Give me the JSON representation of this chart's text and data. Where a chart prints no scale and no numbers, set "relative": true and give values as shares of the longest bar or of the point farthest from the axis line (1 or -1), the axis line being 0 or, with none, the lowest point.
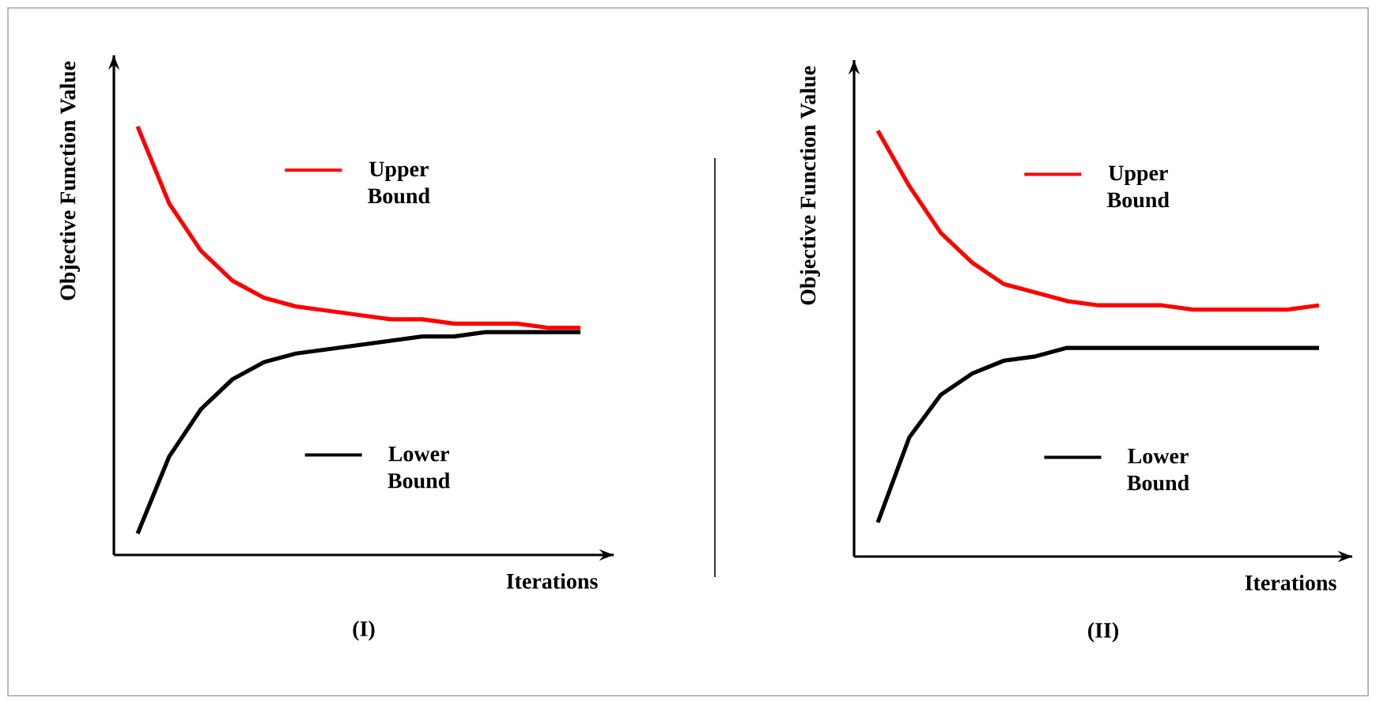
{
  "chart_data": [
    {
      "type": "line",
      "title": "(I)",
      "xlabel": "Iterations",
      "ylabel": "Objective Function Value",
      "relative": true,
      "legend": "top",
      "categories": [
        null,
        null,
        null,
        null,
        null,
        null,
        null,
        null,
        null,
        null,
        null,
        null,
        null,
        null,
        null
      ],
      "series": [
        {
          "name": "Upper Bound",
          "color": "#ff0000",
          "values": [
            1.0,
            0.82,
            0.71,
            0.64,
            0.6,
            0.58,
            0.57,
            0.56,
            0.55,
            0.55,
            0.54,
            0.54,
            0.54,
            0.53,
            0.53
          ]
        },
        {
          "name": "Lower Bound",
          "color": "#000000",
          "values": [
            0.05,
            0.23,
            0.34,
            0.41,
            0.45,
            0.47,
            0.48,
            0.49,
            0.5,
            0.51,
            0.51,
            0.52,
            0.52,
            0.52,
            0.52
          ]
        }
      ]
    },
    {
      "type": "line",
      "title": "(II)",
      "xlabel": "Iterations",
      "ylabel": "Objective Function Value",
      "relative": true,
      "legend": "top",
      "categories": [
        null,
        null,
        null,
        null,
        null,
        null,
        null,
        null,
        null,
        null,
        null,
        null,
        null,
        null,
        null
      ],
      "series": [
        {
          "name": "Upper Bound",
          "color": "#ff0000",
          "values": [
            1.0,
            0.87,
            0.76,
            0.69,
            0.64,
            0.62,
            0.6,
            0.59,
            0.59,
            0.59,
            0.58,
            0.58,
            0.58,
            0.58,
            0.59
          ]
        },
        {
          "name": "Lower Bound",
          "color": "#000000",
          "values": [
            0.08,
            0.28,
            0.38,
            0.43,
            0.46,
            0.47,
            0.49,
            0.49,
            0.49,
            0.49,
            0.49,
            0.49,
            0.49,
            0.49,
            0.49
          ]
        }
      ]
    }
  ]
}
